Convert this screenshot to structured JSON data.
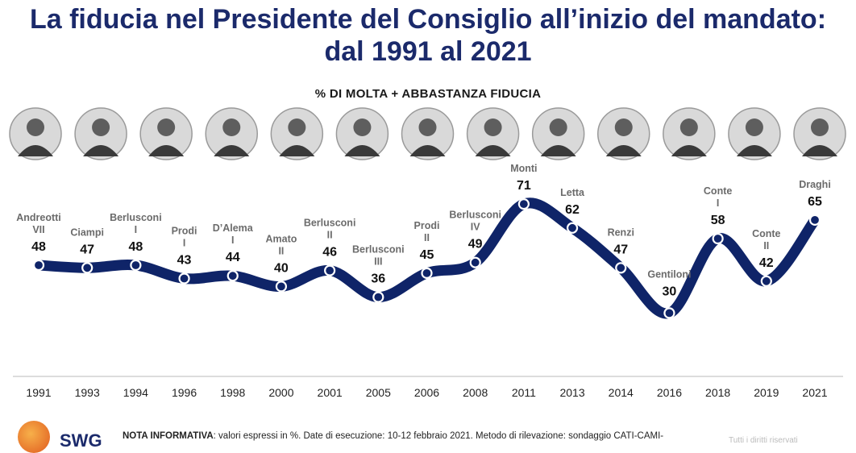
{
  "title_line1": "La fiducia nel Presidente del Consiglio all’inizio del mandato:",
  "title_line2": "dal 1991 al 2021",
  "footer": {
    "logo_text": "SWG",
    "note_label": "NOTA INFORMATIVA",
    "note_text": ": valori espressi in %. Date di esecuzione: 10-12 febbraio 2021. Metodo di rilevazione: sondaggio CATI-CAMI-",
    "rights": "Tutti i diritti riservati"
  },
  "chart_data": {
    "type": "line",
    "title": "% DI MOLTA + ABBASTANZA FIDUCIA",
    "categories": [
      "1991",
      "1993",
      "1994",
      "1996",
      "1998",
      "2000",
      "2001",
      "2005",
      "2006",
      "2008",
      "2011",
      "2013",
      "2014",
      "2016",
      "2018",
      "2019",
      "2021"
    ],
    "values": [
      48,
      47,
      48,
      43,
      44,
      40,
      46,
      36,
      45,
      49,
      71,
      62,
      47,
      30,
      58,
      42,
      65
    ],
    "labels": [
      [
        "Andreotti",
        "VII"
      ],
      [
        "Ciampi"
      ],
      [
        "Berlusconi",
        "I"
      ],
      [
        "Prodi",
        "I"
      ],
      [
        "D’Alema",
        "I"
      ],
      [
        "Amato",
        "II"
      ],
      [
        "Berlusconi",
        "II"
      ],
      [
        "Berlusconi",
        "III"
      ],
      [
        "Prodi",
        "II"
      ],
      [
        "Berlusconi",
        "IV"
      ],
      [
        "Monti"
      ],
      [
        "Letta"
      ],
      [
        "Renzi"
      ],
      [
        "Gentiloni"
      ],
      [
        "Conte",
        "I"
      ],
      [
        "Conte",
        "II"
      ],
      [
        "Draghi"
      ]
    ],
    "label_position": [
      "above",
      "above",
      "above",
      "above",
      "above",
      "above",
      "above",
      "above",
      "above",
      "above",
      "above",
      "above",
      "above",
      "below",
      "above",
      "above",
      "above"
    ],
    "line_color": "#0f2468",
    "portrait_icons": [
      "andreotti-portrait",
      "ciampi-portrait",
      "berlusconi-portrait",
      "prodi-portrait",
      "dalema-portrait",
      "amato-portrait",
      "giuliano-amato-portrait",
      "monti-portrait",
      "letta-portrait",
      "renzi-portrait",
      "gentiloni-portrait",
      "conte-portrait",
      "draghi-portrait"
    ]
  }
}
